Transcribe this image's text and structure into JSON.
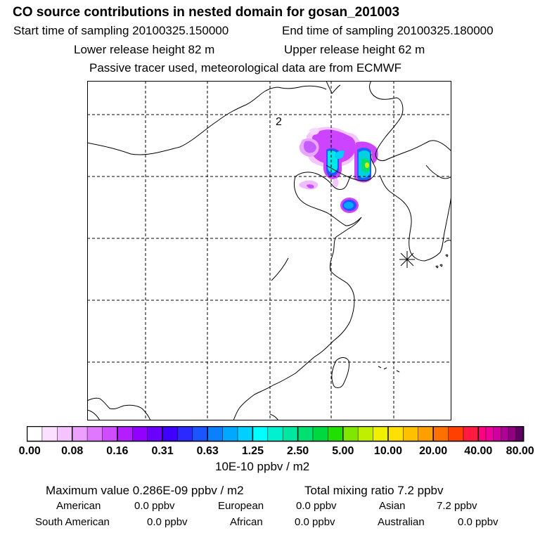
{
  "header": {
    "title": "CO  source contributions in nested domain for gosan_201003",
    "start_label": "Start time of sampling 20100325.150000",
    "end_label": "End time of sampling 20100325.180000",
    "lower_label": "Lower release height   82 m",
    "upper_label": "Upper release height   62 m",
    "note": "Passive tracer used, meteorological data are from ECMWF"
  },
  "map": {
    "marker_label": "2",
    "station_marker": "asterisk-icon"
  },
  "legend": {
    "colors": [
      "#ffffff",
      "#fbe0ff",
      "#f5c3ff",
      "#eca0ff",
      "#df78ff",
      "#cf4dff",
      "#b41dff",
      "#9200ff",
      "#6a00ff",
      "#4000ff",
      "#2a2aff",
      "#1a55ff",
      "#0a80ff",
      "#00a8ff",
      "#00d0ff",
      "#00ffff",
      "#00f0d0",
      "#00e8a0",
      "#00e070",
      "#00d840",
      "#20e000",
      "#80e800",
      "#c0f000",
      "#f0f000",
      "#ffe000",
      "#ffc000",
      "#ffa000",
      "#ff7000",
      "#ff4000",
      "#ff1a40",
      "#ff0080",
      "#f0009a",
      "#d000a0",
      "#b0009a",
      "#900080",
      "#600060"
    ],
    "ticks": [
      "0.00",
      "0.08",
      "0.16",
      "0.31",
      "0.63",
      "1.25",
      "2.50",
      "5.00",
      "10.00",
      "20.00",
      "40.00",
      "80.00"
    ],
    "unit": "10E-10 ppbv / m2"
  },
  "stats": {
    "max_value": "Maximum value  0.286E-09 ppbv / m2",
    "total": "Total mixing ratio        7.2 ppbv",
    "row1": [
      {
        "label": "American",
        "value": "0.0 ppbv"
      },
      {
        "label": "European",
        "value": "0.0 ppbv"
      },
      {
        "label": "Asian",
        "value": "7.2 ppbv"
      }
    ],
    "row2": [
      {
        "label": "South American",
        "value": "0.0 ppbv"
      },
      {
        "label": "African",
        "value": "0.0 ppbv"
      },
      {
        "label": "Australian",
        "value": "0.0 ppbv"
      }
    ]
  }
}
